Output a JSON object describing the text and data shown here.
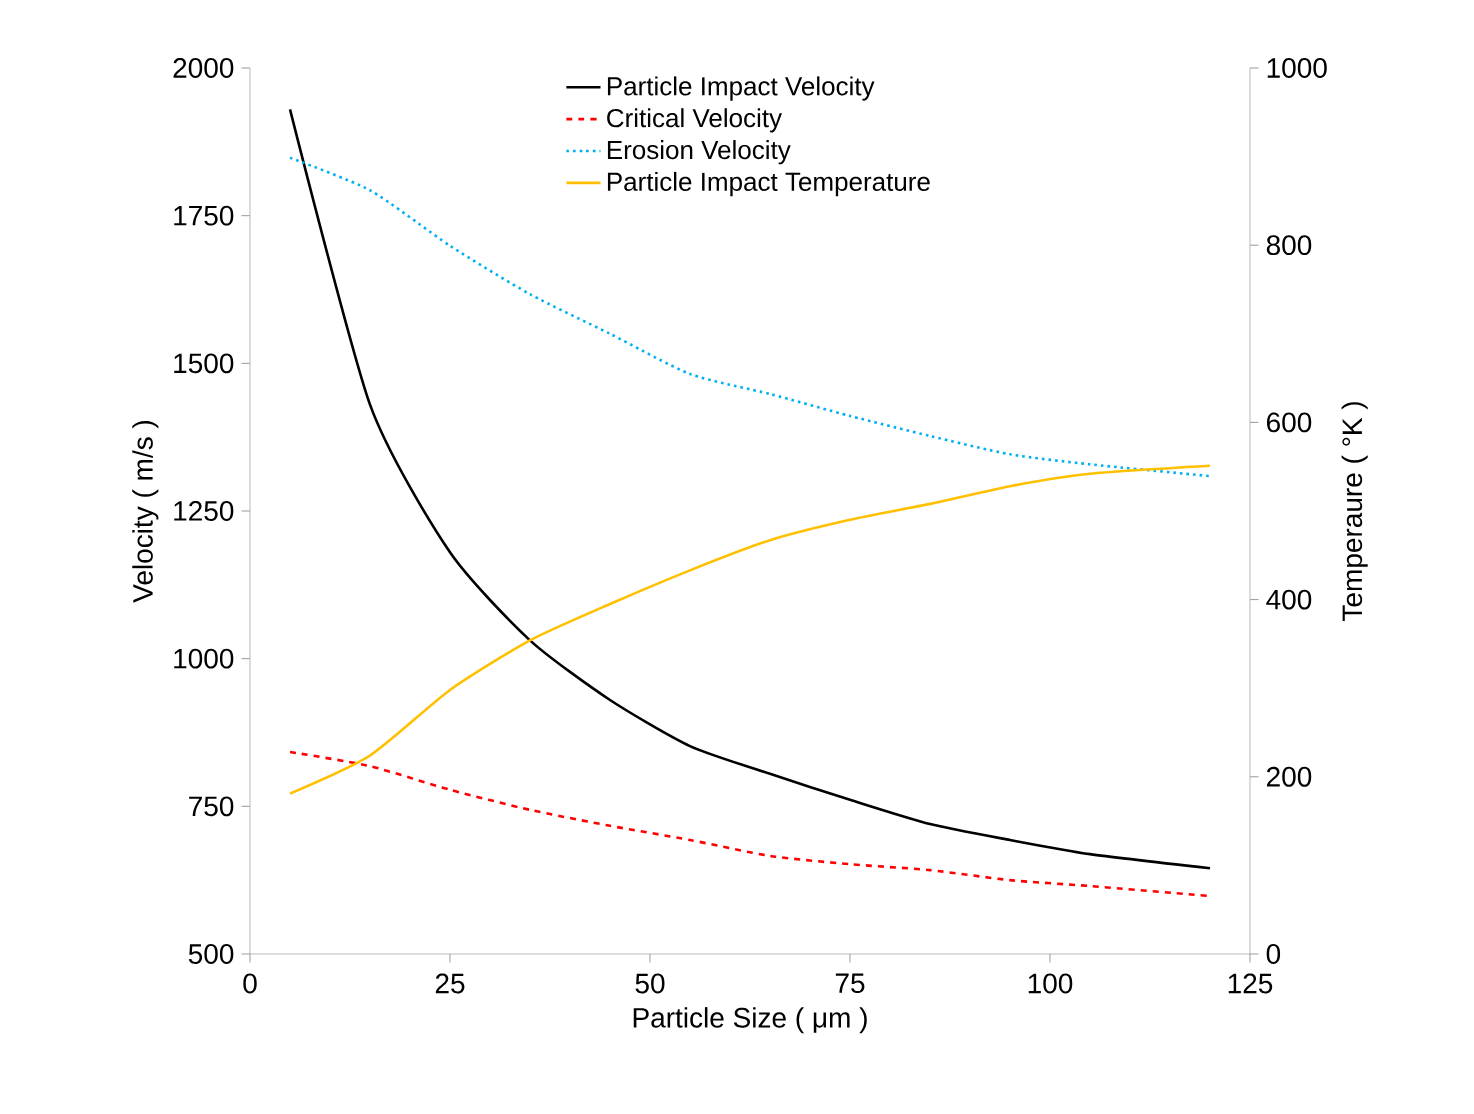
{
  "chart_data": {
    "type": "line",
    "xlabel": "Particle Size ( μm )",
    "ylabel": "Velocity ( m/s )",
    "y2label": "Temperaure ( °K )",
    "x": [
      5,
      15,
      25,
      35,
      45,
      55,
      65,
      75,
      85,
      95,
      105,
      120
    ],
    "xlim": [
      0,
      125
    ],
    "xticks": [
      0,
      25,
      50,
      75,
      100,
      125
    ],
    "ylim": [
      500,
      2000
    ],
    "yticks": [
      500,
      750,
      1000,
      1250,
      1500,
      1750,
      2000
    ],
    "y2lim": [
      0,
      1000
    ],
    "y2ticks": [
      0,
      200,
      400,
      600,
      800,
      1000
    ],
    "grid": false,
    "legend": "top",
    "marker": "none",
    "series": [
      {
        "name": "Particle Impact Velocity",
        "color": "#000000",
        "line_style": "solid",
        "values": [
          1930,
          1430,
          1180,
          1031,
          930,
          852,
          805,
          761,
          720,
          693,
          669,
          645
        ]
      },
      {
        "name": "Critical Velocity",
        "color": "#ff0000",
        "line_style": "dashed",
        "values": [
          842,
          818,
          778,
          744,
          717,
          693,
          666,
          652,
          642,
          625,
          615,
          598
        ]
      },
      {
        "name": "Erosion Velocity",
        "color": "#00b0f0",
        "line_style": "dotted",
        "values": [
          1848,
          1793,
          1699,
          1617,
          1550,
          1482,
          1448,
          1411,
          1377,
          1346,
          1329,
          1309
        ]
      },
      {
        "name": "Particle Impact Temperature",
        "color": "#ffc000",
        "line_style": "solid",
        "axis": "y2",
        "values": [
          181,
          224,
          298,
          354,
          395,
          433,
          467,
          490,
          508,
          528,
          542,
          551
        ]
      }
    ]
  }
}
